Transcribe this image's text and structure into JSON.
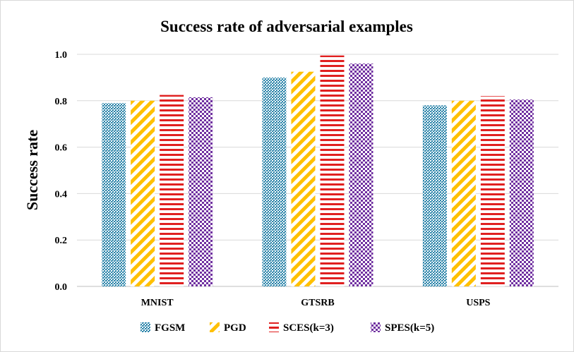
{
  "chart_data": {
    "type": "bar",
    "title": "Success rate of adversarial  examples",
    "xlabel": "",
    "ylabel": "Success rate",
    "categories": [
      "MNIST",
      "GTSRB",
      "USPS"
    ],
    "ylim": [
      0,
      1.0
    ],
    "yticks": [
      "0.0",
      "0.2",
      "0.4",
      "0.6",
      "0.8",
      "1.0"
    ],
    "grid": "horizontal",
    "legend_position": "bottom",
    "series": [
      {
        "name": "FGSM",
        "values": [
          0.79,
          0.9,
          0.78
        ],
        "color": "#2e86ab",
        "pattern": "dots"
      },
      {
        "name": "PGD",
        "values": [
          0.8,
          0.925,
          0.8
        ],
        "color": "#ffc000",
        "pattern": "diagonal-stripes"
      },
      {
        "name": "SCES(k=3)",
        "values": [
          0.825,
          0.995,
          0.82
        ],
        "color": "#e02020",
        "pattern": "horizontal-stripes"
      },
      {
        "name": "SPES(k=5)",
        "values": [
          0.815,
          0.96,
          0.805
        ],
        "color": "#7030a0",
        "pattern": "checker"
      }
    ]
  }
}
